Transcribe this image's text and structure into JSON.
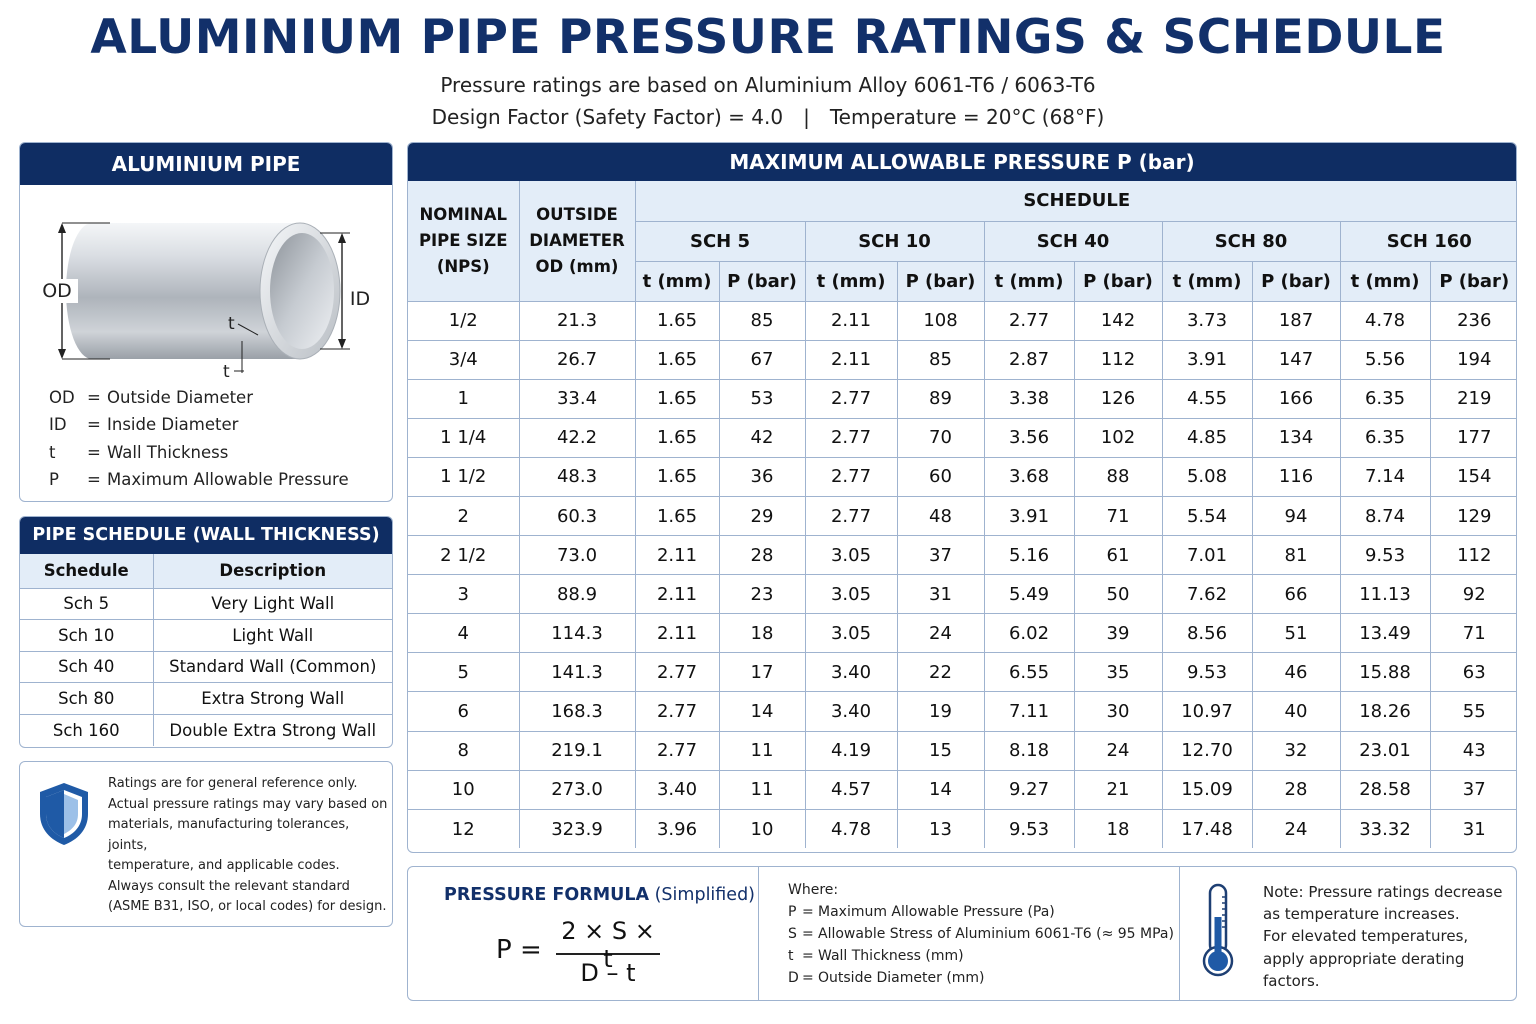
{
  "header": {
    "title": "ALUMINIUM PIPE PRESSURE RATINGS & SCHEDULE",
    "subtitle_line1": "Pressure ratings are based on Aluminium Alloy 6061-T6 / 6063-T6",
    "subtitle_design_factor": "Design Factor (Safety Factor) = 4.0",
    "subtitle_separator": "|",
    "subtitle_temperature": "Temperature = 20°C (68°F)"
  },
  "pipe_panel": {
    "title": "ALUMINIUM PIPE",
    "diagram_labels": {
      "od": "OD",
      "id": "ID",
      "t_top": "t",
      "t_bottom": "t"
    },
    "legend": [
      {
        "abbr": "OD",
        "eq": "=",
        "desc": "Outside Diameter"
      },
      {
        "abbr": "ID",
        "eq": "=",
        "desc": "Inside Diameter"
      },
      {
        "abbr": "t",
        "eq": "=",
        "desc": "Wall Thickness"
      },
      {
        "abbr": "P",
        "eq": "=",
        "desc": "Maximum Allowable Pressure"
      }
    ]
  },
  "schedule_panel": {
    "title": "PIPE SCHEDULE (WALL THICKNESS)",
    "headers": [
      "Schedule",
      "Description"
    ],
    "rows": [
      [
        "Sch 5",
        "Very Light Wall"
      ],
      [
        "Sch 10",
        "Light Wall"
      ],
      [
        "Sch 40",
        "Standard Wall (Common)"
      ],
      [
        "Sch 80",
        "Extra Strong Wall"
      ],
      [
        "Sch 160",
        "Double Extra Strong Wall"
      ]
    ]
  },
  "note_panel": {
    "icon": "shield-icon",
    "lines": [
      "Ratings are for general reference only.",
      "Actual pressure ratings may vary based on",
      "materials, manufacturing tolerances, joints,",
      "temperature, and applicable codes.",
      "Always consult the relevant standard",
      "(ASME B31, ISO, or local codes) for design."
    ]
  },
  "main_table": {
    "title": "MAXIMUM ALLOWABLE PRESSURE P (bar)",
    "nps_header": [
      "NOMINAL",
      "PIPE SIZE",
      "(NPS)"
    ],
    "od_header": [
      "OUTSIDE",
      "DIAMETER",
      "OD (mm)"
    ],
    "schedule_header": "SCHEDULE",
    "schedules": [
      "SCH 5",
      "SCH 10",
      "SCH 40",
      "SCH 80",
      "SCH 160"
    ],
    "sub_headers": [
      "t (mm)",
      "P (bar)"
    ],
    "rows": [
      [
        "1/2",
        "21.3",
        "1.65",
        "85",
        "2.11",
        "108",
        "2.77",
        "142",
        "3.73",
        "187",
        "4.78",
        "236"
      ],
      [
        "3/4",
        "26.7",
        "1.65",
        "67",
        "2.11",
        "85",
        "2.87",
        "112",
        "3.91",
        "147",
        "5.56",
        "194"
      ],
      [
        "1",
        "33.4",
        "1.65",
        "53",
        "2.77",
        "89",
        "3.38",
        "126",
        "4.55",
        "166",
        "6.35",
        "219"
      ],
      [
        "1 1/4",
        "42.2",
        "1.65",
        "42",
        "2.77",
        "70",
        "3.56",
        "102",
        "4.85",
        "134",
        "6.35",
        "177"
      ],
      [
        "1 1/2",
        "48.3",
        "1.65",
        "36",
        "2.77",
        "60",
        "3.68",
        "88",
        "5.08",
        "116",
        "7.14",
        "154"
      ],
      [
        "2",
        "60.3",
        "1.65",
        "29",
        "2.77",
        "48",
        "3.91",
        "71",
        "5.54",
        "94",
        "8.74",
        "129"
      ],
      [
        "2 1/2",
        "73.0",
        "2.11",
        "28",
        "3.05",
        "37",
        "5.16",
        "61",
        "7.01",
        "81",
        "9.53",
        "112"
      ],
      [
        "3",
        "88.9",
        "2.11",
        "23",
        "3.05",
        "31",
        "5.49",
        "50",
        "7.62",
        "66",
        "11.13",
        "92"
      ],
      [
        "4",
        "114.3",
        "2.11",
        "18",
        "3.05",
        "24",
        "6.02",
        "39",
        "8.56",
        "51",
        "13.49",
        "71"
      ],
      [
        "5",
        "141.3",
        "2.77",
        "17",
        "3.40",
        "22",
        "6.55",
        "35",
        "9.53",
        "46",
        "15.88",
        "63"
      ],
      [
        "6",
        "168.3",
        "2.77",
        "14",
        "3.40",
        "19",
        "7.11",
        "30",
        "10.97",
        "40",
        "18.26",
        "55"
      ],
      [
        "8",
        "219.1",
        "2.77",
        "11",
        "4.19",
        "15",
        "8.18",
        "24",
        "12.70",
        "32",
        "23.01",
        "43"
      ],
      [
        "10",
        "273.0",
        "3.40",
        "11",
        "4.57",
        "14",
        "9.27",
        "21",
        "15.09",
        "28",
        "28.58",
        "37"
      ],
      [
        "12",
        "323.9",
        "3.96",
        "10",
        "4.78",
        "13",
        "9.53",
        "18",
        "17.48",
        "24",
        "33.32",
        "31"
      ]
    ]
  },
  "formula_panel": {
    "title_bold": "PRESSURE FORMULA",
    "title_rest": " (Simplified)",
    "lhs": "P",
    "equals": "=",
    "numerator": "2 × S × t",
    "denominator": "D – t",
    "where_title": "Where:",
    "where": [
      {
        "sym": "P",
        "eq": "=",
        "desc": "Maximum Allowable Pressure (Pa)"
      },
      {
        "sym": "S",
        "eq": "=",
        "desc": "Allowable Stress of Aluminium 6061-T6 (≈ 95 MPa)"
      },
      {
        "sym": "t",
        "eq": "=",
        "desc": "Wall Thickness (mm)"
      },
      {
        "sym": "D",
        "eq": "=",
        "desc": "Outside Diameter (mm)"
      }
    ],
    "thermometer_icon": "thermometer-icon",
    "note_lines": [
      "Note: Pressure ratings decrease",
      "as temperature increases.",
      "For elevated temperatures,",
      "apply appropriate derating",
      "factors."
    ]
  },
  "colors": {
    "navy": "#0f2d63",
    "header_fill": "#e3edf8",
    "border": "#9fb3cf",
    "title_text": "#12306a",
    "shield_blue": "#1f5aa6"
  }
}
